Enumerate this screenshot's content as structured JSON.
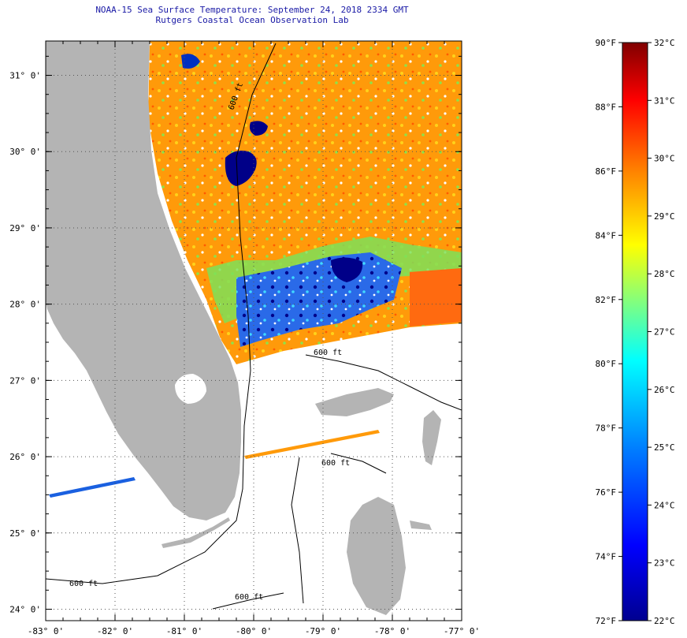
{
  "title": "NOAA-15 Sea Surface Temperature:  September 24, 2018 2334 GMT",
  "subtitle": "Rutgers Coastal Ocean Observation Lab",
  "map": {
    "lon_range": [
      -83,
      -77
    ],
    "lat_range": [
      23.85,
      31.45
    ],
    "lat_ticks": [
      "31° 0'",
      "30° 0'",
      "29° 0'",
      "28° 0'",
      "27° 0'",
      "26° 0'",
      "25° 0'",
      "24° 0'"
    ],
    "lon_ticks": [
      "-83° 0'",
      "-82° 0'",
      "-81° 0'",
      "-80° 0'",
      "-79° 0'",
      "-78° 0'",
      "-77° 0'"
    ],
    "grid": "dotted",
    "land_color": "#b4b4b4",
    "contour_labels": [
      "600 ft",
      "600 ft",
      "600 ft",
      "600 ft",
      "600 ft"
    ]
  },
  "colorbar": {
    "f_labels": [
      "90°F",
      "88°F",
      "86°F",
      "84°F",
      "82°F",
      "80°F",
      "78°F",
      "76°F",
      "74°F",
      "72°F"
    ],
    "c_labels": [
      "32°C",
      "31°C",
      "30°C",
      "29°C",
      "28°C",
      "27°C",
      "26°C",
      "25°C",
      "24°C",
      "23°C",
      "22°C"
    ],
    "f_values": [
      90,
      88,
      86,
      84,
      82,
      80,
      78,
      76,
      74,
      72
    ],
    "c_values": [
      32,
      31,
      30,
      29,
      28,
      27,
      26,
      25,
      24,
      23,
      22
    ],
    "colors": [
      "#000090",
      "#0000ff",
      "#0080ff",
      "#00ffff",
      "#80ff80",
      "#ffff00",
      "#ff8000",
      "#ff0000",
      "#800000"
    ]
  }
}
